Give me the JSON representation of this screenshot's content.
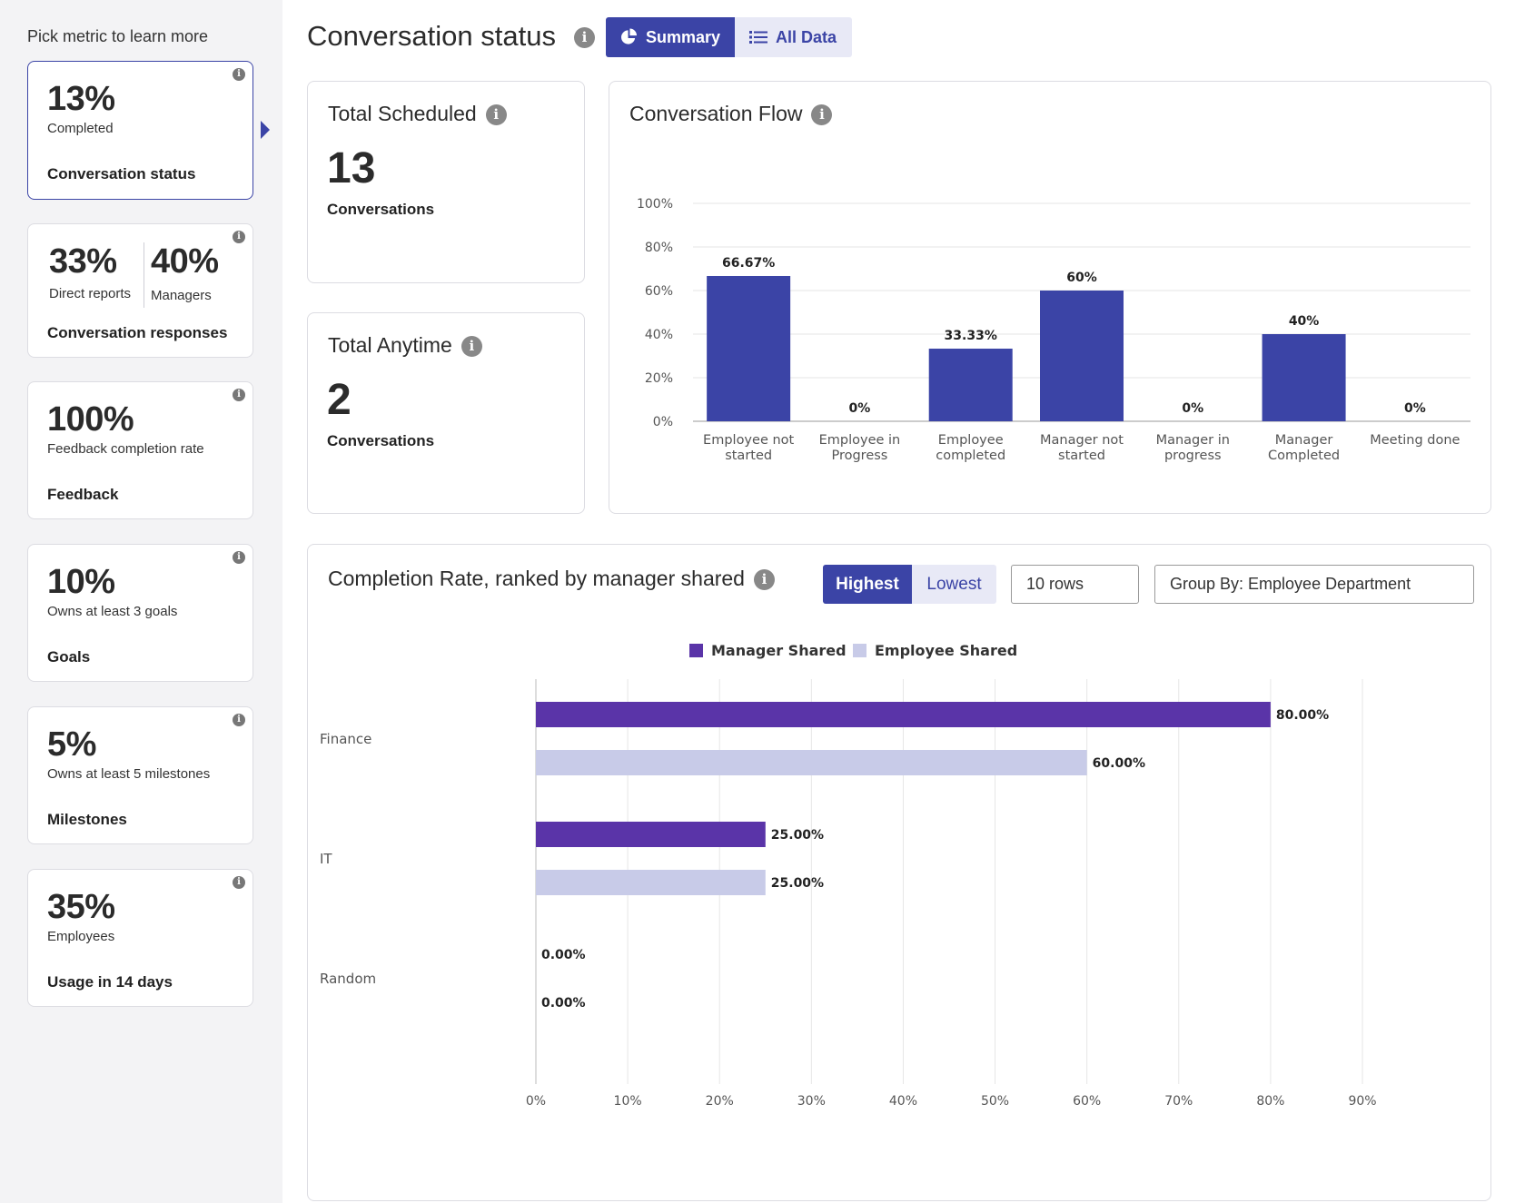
{
  "sidebar": {
    "title": "Pick metric to learn more",
    "cards": [
      {
        "value": "13%",
        "sub": "Completed",
        "name": "Conversation status"
      },
      {
        "value_a": "33%",
        "sub_a": "Direct reports",
        "value_b": "40%",
        "sub_b": "Managers",
        "name": "Conversation responses"
      },
      {
        "value": "100%",
        "sub": "Feedback completion rate",
        "name": "Feedback"
      },
      {
        "value": "10%",
        "sub": "Owns at least 3 goals",
        "name": "Goals"
      },
      {
        "value": "5%",
        "sub": "Owns at least 5 milestones",
        "name": "Milestones"
      },
      {
        "value": "35%",
        "sub": "Employees",
        "name": "Usage in 14 days"
      }
    ]
  },
  "header": {
    "title": "Conversation status",
    "summary_label": "Summary",
    "all_data_label": "All Data"
  },
  "total_scheduled": {
    "title": "Total Scheduled",
    "value": "13",
    "unit": "Conversations"
  },
  "total_anytime": {
    "title": "Total Anytime",
    "value": "2",
    "unit": "Conversations"
  },
  "conversation_flow": {
    "title": "Conversation Flow"
  },
  "completion": {
    "title": "Completion Rate, ranked by manager shared",
    "highest_label": "Highest",
    "lowest_label": "Lowest",
    "rows_value": "10 rows",
    "group_by_value": "Group By: Employee Department"
  },
  "colors": {
    "accent": "#3b44a6",
    "manager_shared": "#5a34a8",
    "employee_shared": "#c8cbe8",
    "flow_bar": "#3b44a6"
  },
  "chart_data": [
    {
      "type": "bar",
      "categories": [
        [
          "Employee not",
          "started"
        ],
        [
          "Employee in",
          "Progress"
        ],
        [
          "Employee",
          "completed"
        ],
        [
          "Manager not",
          "started"
        ],
        [
          "Manager in",
          "progress"
        ],
        [
          "Manager",
          "Completed"
        ],
        [
          "Meeting done"
        ]
      ],
      "values": [
        66.67,
        0,
        33.33,
        60,
        0,
        40,
        0
      ],
      "data_labels": [
        "66.67%",
        "0%",
        "33.33%",
        "60%",
        "0%",
        "40%",
        "0%"
      ],
      "yticks": [
        "0%",
        "20%",
        "40%",
        "60%",
        "80%",
        "100%"
      ],
      "ylim": [
        0,
        100
      ],
      "grid": true
    },
    {
      "type": "bar",
      "orientation": "horizontal",
      "categories": [
        "Finance",
        "IT",
        "Random"
      ],
      "series": [
        {
          "name": "Manager Shared",
          "values": [
            80,
            25,
            0
          ],
          "labels": [
            "80.00%",
            "25.00%",
            "0.00%"
          ]
        },
        {
          "name": "Employee Shared",
          "values": [
            60,
            25,
            0
          ],
          "labels": [
            "60.00%",
            "25.00%",
            "0.00%"
          ]
        }
      ],
      "xticks": [
        "0%",
        "10%",
        "20%",
        "30%",
        "40%",
        "50%",
        "60%",
        "70%",
        "80%",
        "90%"
      ],
      "xlim": [
        0,
        90
      ],
      "legend": "top-center",
      "grid": true
    }
  ]
}
